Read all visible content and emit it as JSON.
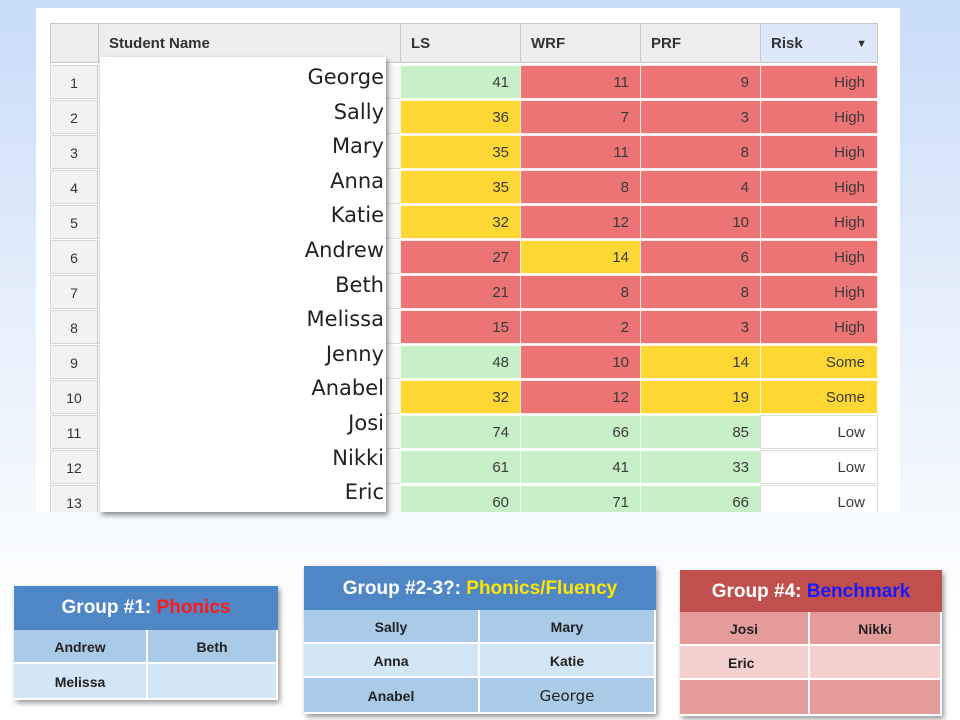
{
  "sheet": {
    "headers": {
      "name": "Student Name",
      "ls": "LS",
      "wrf": "WRF",
      "prf": "PRF",
      "risk": "Risk",
      "risk_arrow": "▼"
    },
    "rows": [
      {
        "n": "1",
        "name": "George",
        "ls": "41",
        "wrf": "11",
        "prf": "9",
        "risk": "High"
      },
      {
        "n": "2",
        "name": "Sally",
        "ls": "36",
        "wrf": "7",
        "prf": "3",
        "risk": "High"
      },
      {
        "n": "3",
        "name": "Mary",
        "ls": "35",
        "wrf": "11",
        "prf": "8",
        "risk": "High"
      },
      {
        "n": "4",
        "name": "Anna",
        "ls": "35",
        "wrf": "8",
        "prf": "4",
        "risk": "High"
      },
      {
        "n": "5",
        "name": "Katie",
        "ls": "32",
        "wrf": "12",
        "prf": "10",
        "risk": "High"
      },
      {
        "n": "6",
        "name": "Andrew",
        "ls": "27",
        "wrf": "14",
        "prf": "6",
        "risk": "High"
      },
      {
        "n": "7",
        "name": "Beth",
        "ls": "21",
        "wrf": "8",
        "prf": "8",
        "risk": "High"
      },
      {
        "n": "8",
        "name": "Melissa",
        "ls": "15",
        "wrf": "2",
        "prf": "3",
        "risk": "High"
      },
      {
        "n": "9",
        "name": "Jenny",
        "ls": "48",
        "wrf": "10",
        "prf": "14",
        "risk": "Some"
      },
      {
        "n": "10",
        "name": "Anabel",
        "ls": "32",
        "wrf": "12",
        "prf": "19",
        "risk": "Some"
      },
      {
        "n": "11",
        "name": "Josi",
        "ls": "74",
        "wrf": "66",
        "prf": "85",
        "risk": "Low"
      },
      {
        "n": "12",
        "name": "Nikki",
        "ls": "61",
        "wrf": "41",
        "prf": "33",
        "risk": "Low"
      },
      {
        "n": "13",
        "name": "Eric",
        "ls": "60",
        "wrf": "71",
        "prf": "66",
        "risk": "Low"
      }
    ]
  },
  "groups": {
    "g1": {
      "prefix": "Group #1: ",
      "accent": "Phonics",
      "cells": [
        [
          "Andrew",
          "Beth"
        ],
        [
          "Melissa",
          ""
        ]
      ]
    },
    "g2": {
      "prefix": "Group #2-3?: ",
      "accent": "Phonics/Fluency",
      "cells": [
        [
          "Sally",
          "Mary"
        ],
        [
          "Anna",
          "Katie"
        ],
        [
          "Anabel",
          "George"
        ]
      ]
    },
    "g4": {
      "prefix": "Group #4: ",
      "accent": "Benchmark",
      "cells": [
        [
          "Josi",
          "Nikki"
        ],
        [
          "Eric",
          ""
        ],
        [
          "",
          ""
        ]
      ]
    }
  },
  "colors": {
    "green": "#c8f0c8",
    "yellow": "#fdd835",
    "red": "#ec7474",
    "white": "#ffffff",
    "blue_header": "#4f86c6",
    "red_header": "#c0504d"
  }
}
